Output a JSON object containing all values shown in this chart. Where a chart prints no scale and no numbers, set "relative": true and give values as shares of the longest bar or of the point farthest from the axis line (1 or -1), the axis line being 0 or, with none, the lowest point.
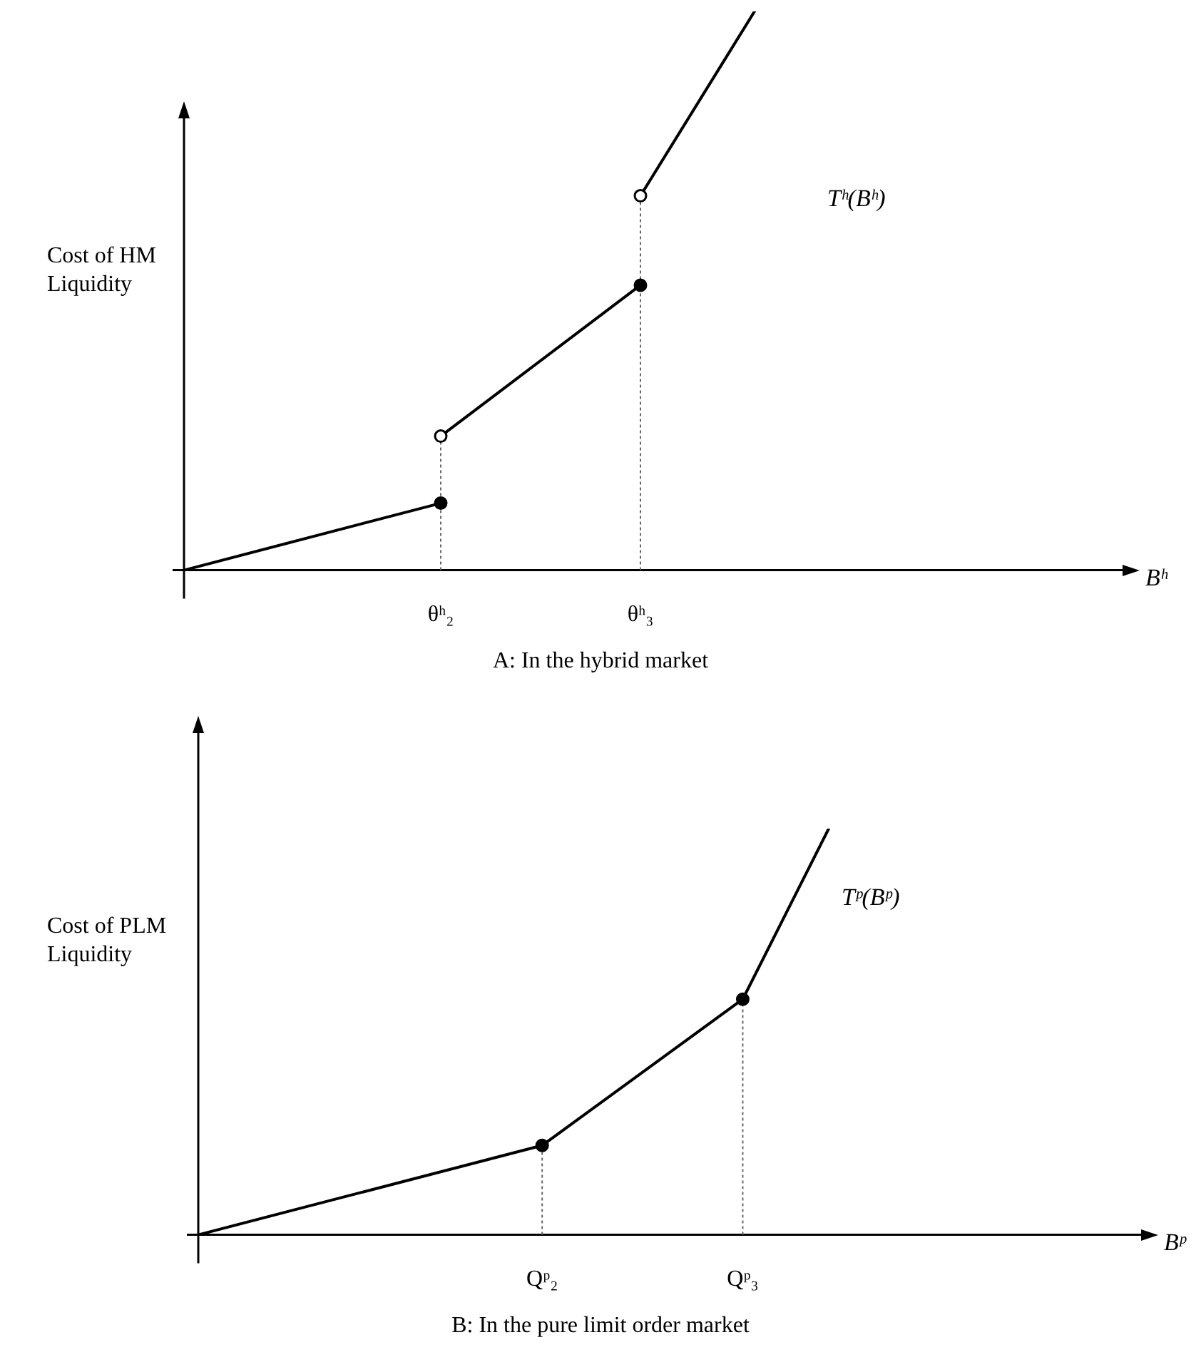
{
  "chart_data": [
    {
      "type": "line",
      "title": "A: In the hybrid market",
      "xlabel": "Bʰ",
      "ylabel": "Cost of HM Liquidity",
      "relative": true,
      "categories": [
        null,
        null,
        null,
        null,
        null,
        null,
        null,
        null,
        null,
        "θʰ₂",
        null,
        null,
        null,
        null,
        null,
        null,
        "θʰ₃",
        null,
        null,
        null,
        null,
        null,
        null,
        null,
        null,
        null,
        null,
        null,
        null,
        null,
        null,
        null,
        null,
        null
      ],
      "series": [
        {
          "type": "line",
          "color": "#000000",
          "marker": "none",
          "values": [
            0,
            null,
            null,
            null,
            null,
            null,
            null,
            null,
            null,
            0.12,
            null,
            null,
            null,
            null,
            null,
            null,
            null,
            null,
            null,
            null,
            null,
            null,
            null,
            null,
            null,
            null,
            null,
            null,
            null,
            null,
            null,
            null,
            null,
            null
          ]
        },
        {
          "type": "line",
          "color": "#000000",
          "marker": "none",
          "values": [
            null,
            null,
            null,
            null,
            null,
            null,
            null,
            null,
            null,
            0.24,
            null,
            null,
            null,
            null,
            null,
            null,
            0.51,
            null,
            null,
            null,
            null,
            null,
            null,
            null,
            null,
            null,
            null,
            null,
            null,
            null,
            null,
            null,
            null,
            null
          ]
        },
        {
          "type": "line",
          "color": "#000000",
          "marker": "none",
          "values": [
            null,
            null,
            null,
            null,
            null,
            null,
            null,
            null,
            null,
            null,
            null,
            null,
            null,
            null,
            null,
            null,
            0.67,
            null,
            null,
            null,
            1,
            null,
            null,
            null,
            null,
            null,
            null,
            null,
            null,
            null,
            null,
            null,
            null,
            null
          ]
        },
        {
          "type": "scatter",
          "color": "#000000",
          "marker": "circle",
          "values": [
            null,
            null,
            null,
            null,
            null,
            null,
            null,
            null,
            null,
            0.12,
            null,
            null,
            null,
            null,
            null,
            null,
            0.51,
            null,
            null,
            null,
            null,
            null,
            null,
            null,
            null,
            null,
            null,
            null,
            null,
            null,
            null,
            null,
            null,
            null
          ]
        },
        {
          "type": "scatter",
          "color": "#ffffff",
          "marker": "circle",
          "values": [
            null,
            null,
            null,
            null,
            null,
            null,
            null,
            null,
            null,
            0.24,
            null,
            null,
            null,
            null,
            null,
            null,
            0.67,
            null,
            null,
            null,
            null,
            null,
            null,
            null,
            null,
            null,
            null,
            null,
            null,
            null,
            null,
            null,
            null,
            null
          ]
        }
      ],
      "annotations": [
        "Tʰ(Bʰ)"
      ]
    },
    {
      "type": "line",
      "title": "B: In the pure limit order market",
      "xlabel": "Bᵖ",
      "ylabel": "Cost of PLM Liquidity",
      "relative": true,
      "categories": [
        null,
        null,
        null,
        null,
        null,
        null,
        null,
        null,
        null,
        null,
        null,
        null,
        "Qᵖ₂",
        null,
        null,
        null,
        null,
        null,
        null,
        "Qᵖ₃",
        null,
        null,
        null,
        null,
        null,
        null,
        null,
        null,
        null,
        null,
        null,
        null,
        null,
        null
      ],
      "series": [
        {
          "type": "line",
          "color": "#000000",
          "marker": "none",
          "values": [
            0,
            null,
            null,
            null,
            null,
            null,
            null,
            null,
            null,
            null,
            null,
            null,
            0.22,
            null,
            null,
            null,
            null,
            null,
            null,
            0.58,
            null,
            null,
            1,
            null,
            null,
            null,
            null,
            null,
            null,
            null,
            null,
            null,
            null,
            null
          ]
        },
        {
          "type": "scatter",
          "color": "#000000",
          "marker": "circle",
          "values": [
            null,
            null,
            null,
            null,
            null,
            null,
            null,
            null,
            null,
            null,
            null,
            null,
            0.22,
            null,
            null,
            null,
            null,
            null,
            null,
            0.58,
            null,
            null,
            null,
            null,
            null,
            null,
            null,
            null,
            null,
            null,
            null,
            null,
            null,
            null
          ]
        }
      ],
      "annotations": [
        "Tᵖ(Bᵖ)"
      ]
    }
  ]
}
